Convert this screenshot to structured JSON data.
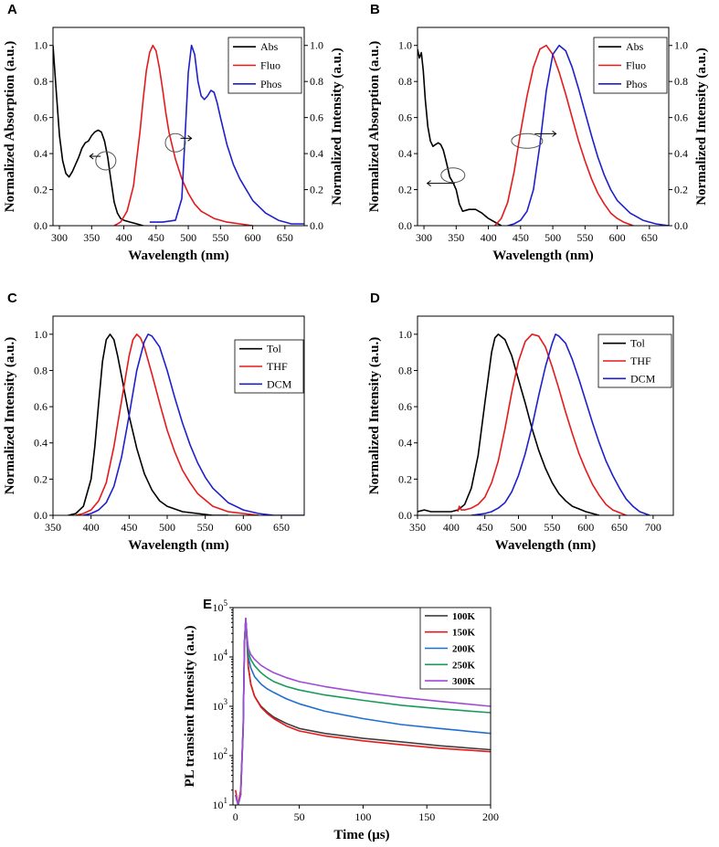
{
  "chart_data": [
    {
      "id": "A",
      "type": "line",
      "panel_label": "A",
      "xlabel": "Wavelength (nm)",
      "ylabel": "Normalized Absorption (a.u.)",
      "ylabel_right": "Normalized Intensity (a.u.)",
      "xlim": [
        290,
        680
      ],
      "ylim": [
        0,
        1.1
      ],
      "xticks": [
        300,
        350,
        400,
        450,
        500,
        550,
        600,
        650
      ],
      "yticks": [
        0.0,
        0.2,
        0.4,
        0.6,
        0.8,
        1.0
      ],
      "yticks_right": [
        0.0,
        0.2,
        0.4,
        0.6,
        0.8,
        1.0
      ],
      "tick_labels": [
        "0.0",
        "0.2",
        "0.4",
        "0.6",
        "0.8",
        "1.0"
      ],
      "legend": "top-right",
      "series": [
        {
          "name": "Abs",
          "color": "#000000",
          "x": [
            290,
            295,
            300,
            305,
            310,
            315,
            320,
            325,
            330,
            335,
            340,
            345,
            350,
            355,
            360,
            365,
            370,
            375,
            380,
            385,
            390,
            395,
            400,
            410,
            420,
            430
          ],
          "y": [
            1.0,
            0.75,
            0.5,
            0.36,
            0.29,
            0.27,
            0.3,
            0.34,
            0.38,
            0.43,
            0.46,
            0.47,
            0.5,
            0.52,
            0.53,
            0.52,
            0.47,
            0.38,
            0.25,
            0.13,
            0.07,
            0.04,
            0.03,
            0.02,
            0.01,
            0.0
          ]
        },
        {
          "name": "Fluo",
          "color": "#e41a1c",
          "x": [
            385,
            395,
            405,
            415,
            425,
            430,
            435,
            440,
            445,
            450,
            455,
            460,
            465,
            470,
            480,
            490,
            500,
            510,
            520,
            540,
            560,
            580,
            600
          ],
          "y": [
            0.0,
            0.02,
            0.08,
            0.22,
            0.52,
            0.7,
            0.86,
            0.96,
            1.0,
            0.97,
            0.88,
            0.76,
            0.63,
            0.52,
            0.37,
            0.26,
            0.18,
            0.12,
            0.08,
            0.04,
            0.02,
            0.01,
            0.0
          ]
        },
        {
          "name": "Phos",
          "color": "#1f1fcc",
          "x": [
            440,
            460,
            480,
            490,
            495,
            500,
            505,
            510,
            515,
            520,
            525,
            530,
            535,
            540,
            545,
            550,
            560,
            570,
            580,
            600,
            620,
            640,
            660,
            680
          ],
          "y": [
            0.02,
            0.02,
            0.03,
            0.15,
            0.5,
            0.85,
            1.0,
            0.95,
            0.8,
            0.72,
            0.7,
            0.72,
            0.75,
            0.74,
            0.68,
            0.6,
            0.45,
            0.34,
            0.26,
            0.14,
            0.07,
            0.03,
            0.01,
            0.01
          ]
        }
      ],
      "annotations": [
        "arrow-left",
        "arrow-right"
      ]
    },
    {
      "id": "B",
      "type": "line",
      "panel_label": "B",
      "xlabel": "Wavelength (nm)",
      "ylabel": "Normalized Absorption (a.u.)",
      "ylabel_right": "Normalized Intensity (a.u.)",
      "xlim": [
        290,
        680
      ],
      "ylim": [
        0,
        1.1
      ],
      "xticks": [
        300,
        350,
        400,
        450,
        500,
        550,
        600,
        650
      ],
      "yticks": [
        0.0,
        0.2,
        0.4,
        0.6,
        0.8,
        1.0
      ],
      "yticks_right": [
        0.0,
        0.2,
        0.4,
        0.6,
        0.8,
        1.0
      ],
      "tick_labels": [
        "0.0",
        "0.2",
        "0.4",
        "0.6",
        "0.8",
        "1.0"
      ],
      "legend": "top-right",
      "series": [
        {
          "name": "Abs",
          "color": "#000000",
          "x": [
            290,
            293,
            296,
            299,
            302,
            306,
            310,
            314,
            318,
            322,
            326,
            330,
            335,
            340,
            345,
            350,
            355,
            360,
            370,
            380,
            390,
            400,
            410,
            420
          ],
          "y": [
            0.98,
            0.93,
            0.96,
            0.86,
            0.7,
            0.55,
            0.47,
            0.44,
            0.45,
            0.46,
            0.45,
            0.42,
            0.35,
            0.27,
            0.24,
            0.2,
            0.12,
            0.08,
            0.09,
            0.09,
            0.07,
            0.04,
            0.02,
            0.0
          ]
        },
        {
          "name": "Fluo",
          "color": "#e41a1c",
          "x": [
            410,
            420,
            430,
            440,
            450,
            460,
            470,
            480,
            490,
            500,
            510,
            520,
            530,
            540,
            550,
            560,
            570,
            580,
            590,
            600,
            610,
            625
          ],
          "y": [
            0.0,
            0.04,
            0.13,
            0.3,
            0.52,
            0.72,
            0.88,
            0.98,
            1.0,
            0.95,
            0.85,
            0.73,
            0.6,
            0.47,
            0.36,
            0.26,
            0.18,
            0.12,
            0.07,
            0.04,
            0.02,
            0.0
          ]
        },
        {
          "name": "Phos",
          "color": "#1f1fcc",
          "x": [
            430,
            440,
            450,
            460,
            470,
            480,
            490,
            500,
            510,
            520,
            530,
            540,
            550,
            560,
            570,
            580,
            590,
            600,
            620,
            640,
            660,
            680
          ],
          "y": [
            0.0,
            0.01,
            0.03,
            0.08,
            0.2,
            0.45,
            0.75,
            0.95,
            1.0,
            0.97,
            0.88,
            0.76,
            0.63,
            0.5,
            0.38,
            0.28,
            0.2,
            0.14,
            0.07,
            0.03,
            0.01,
            0.0
          ]
        }
      ],
      "annotations": [
        "arrow-left",
        "arrow-right"
      ]
    },
    {
      "id": "C",
      "type": "line",
      "panel_label": "C",
      "xlabel": "Wavelength (nm)",
      "ylabel": "Normalized Intensity (a.u.)",
      "xlim": [
        350,
        680
      ],
      "ylim": [
        0,
        1.1
      ],
      "xticks": [
        350,
        400,
        450,
        500,
        550,
        600,
        650
      ],
      "yticks": [
        0.0,
        0.2,
        0.4,
        0.6,
        0.8,
        1.0
      ],
      "tick_labels": [
        "0.0",
        "0.2",
        "0.4",
        "0.6",
        "0.8",
        "1.0"
      ],
      "legend": "top-right",
      "series": [
        {
          "name": "Tol",
          "color": "#000000",
          "x": [
            370,
            380,
            390,
            400,
            405,
            410,
            415,
            420,
            425,
            430,
            435,
            440,
            450,
            460,
            470,
            480,
            490,
            500,
            520,
            540,
            560,
            580
          ],
          "y": [
            0.0,
            0.01,
            0.05,
            0.2,
            0.38,
            0.62,
            0.85,
            0.97,
            1.0,
            0.97,
            0.88,
            0.77,
            0.55,
            0.37,
            0.23,
            0.14,
            0.08,
            0.05,
            0.02,
            0.01,
            0.0,
            0.0
          ]
        },
        {
          "name": "THF",
          "color": "#e41a1c",
          "x": [
            380,
            390,
            400,
            410,
            420,
            430,
            440,
            450,
            455,
            460,
            465,
            470,
            480,
            490,
            500,
            510,
            520,
            530,
            540,
            560,
            580,
            600,
            620
          ],
          "y": [
            0.0,
            0.01,
            0.03,
            0.08,
            0.18,
            0.38,
            0.63,
            0.88,
            0.97,
            1.0,
            0.98,
            0.93,
            0.78,
            0.62,
            0.47,
            0.35,
            0.25,
            0.18,
            0.12,
            0.05,
            0.02,
            0.01,
            0.0
          ]
        },
        {
          "name": "DCM",
          "color": "#1f1fcc",
          "x": [
            390,
            400,
            410,
            420,
            430,
            440,
            450,
            460,
            470,
            475,
            480,
            490,
            500,
            510,
            520,
            530,
            540,
            550,
            560,
            580,
            600,
            620,
            640,
            680
          ],
          "y": [
            0.0,
            0.01,
            0.03,
            0.07,
            0.16,
            0.32,
            0.55,
            0.8,
            0.96,
            1.0,
            0.99,
            0.93,
            0.8,
            0.65,
            0.51,
            0.39,
            0.29,
            0.21,
            0.15,
            0.07,
            0.03,
            0.01,
            0.0,
            0.0
          ]
        }
      ]
    },
    {
      "id": "D",
      "type": "line",
      "panel_label": "D",
      "xlabel": "Wavelength (nm)",
      "ylabel": "Normalized Intensity (a.u.)",
      "xlim": [
        350,
        730
      ],
      "ylim": [
        0,
        1.1
      ],
      "xticks": [
        350,
        400,
        450,
        500,
        550,
        600,
        650,
        700
      ],
      "yticks": [
        0.0,
        0.2,
        0.4,
        0.6,
        0.8,
        1.0
      ],
      "tick_labels": [
        "0.0",
        "0.2",
        "0.4",
        "0.6",
        "0.8",
        "1.0"
      ],
      "legend": "top-right",
      "series": [
        {
          "name": "Tol",
          "color": "#000000",
          "x": [
            350,
            360,
            370,
            380,
            400,
            410,
            420,
            430,
            440,
            450,
            460,
            465,
            470,
            480,
            490,
            500,
            510,
            520,
            530,
            540,
            550,
            560,
            570,
            580,
            600,
            620
          ],
          "y": [
            0.02,
            0.03,
            0.02,
            0.02,
            0.02,
            0.03,
            0.06,
            0.15,
            0.33,
            0.62,
            0.9,
            0.98,
            1.0,
            0.97,
            0.88,
            0.75,
            0.62,
            0.48,
            0.36,
            0.26,
            0.18,
            0.12,
            0.08,
            0.05,
            0.02,
            0.0
          ]
        },
        {
          "name": "THF",
          "color": "#e41a1c",
          "x": [
            410,
            412,
            415,
            420,
            430,
            440,
            450,
            460,
            470,
            480,
            490,
            500,
            510,
            520,
            530,
            540,
            550,
            560,
            570,
            580,
            590,
            600,
            610,
            620,
            630,
            640,
            660
          ],
          "y": [
            0.02,
            0.05,
            0.03,
            0.03,
            0.04,
            0.06,
            0.1,
            0.18,
            0.3,
            0.48,
            0.68,
            0.85,
            0.96,
            1.0,
            0.99,
            0.93,
            0.82,
            0.7,
            0.57,
            0.45,
            0.34,
            0.25,
            0.17,
            0.11,
            0.06,
            0.03,
            0.0
          ]
        },
        {
          "name": "DCM",
          "color": "#1f1fcc",
          "x": [
            430,
            450,
            460,
            470,
            480,
            490,
            500,
            510,
            520,
            530,
            540,
            550,
            555,
            560,
            570,
            580,
            590,
            600,
            610,
            620,
            630,
            640,
            650,
            660,
            670,
            680,
            695
          ],
          "y": [
            0.0,
            0.01,
            0.02,
            0.04,
            0.07,
            0.13,
            0.22,
            0.34,
            0.49,
            0.66,
            0.82,
            0.95,
            1.0,
            0.99,
            0.95,
            0.86,
            0.75,
            0.63,
            0.51,
            0.4,
            0.3,
            0.22,
            0.15,
            0.09,
            0.05,
            0.02,
            0.0
          ]
        }
      ]
    },
    {
      "id": "E",
      "type": "line",
      "panel_label": "E",
      "yscale": "log",
      "xlabel": "Time (μs)",
      "ylabel": "PL transient Intensity (a.u.)",
      "xlim": [
        -2,
        200
      ],
      "ylim_exp": [
        1,
        5
      ],
      "xticks": [
        0,
        50,
        100,
        150,
        200
      ],
      "yticks_exp": [
        1,
        2,
        3,
        4,
        5
      ],
      "ytick_base": "10",
      "legend": "top-right",
      "series": [
        {
          "name": "100K",
          "color": "#404040",
          "x": [
            0,
            2,
            4,
            6,
            7,
            8,
            9,
            10,
            12,
            15,
            20,
            25,
            30,
            40,
            50,
            70,
            100,
            130,
            160,
            200
          ],
          "log10y": [
            1.2,
            1.0,
            1.2,
            2.5,
            4.3,
            4.78,
            4.3,
            3.8,
            3.45,
            3.2,
            3.0,
            2.88,
            2.78,
            2.65,
            2.55,
            2.45,
            2.35,
            2.28,
            2.2,
            2.12
          ]
        },
        {
          "name": "150K",
          "color": "#e41a1c",
          "x": [
            0,
            2,
            4,
            6,
            7,
            8,
            9,
            10,
            12,
            15,
            20,
            25,
            30,
            40,
            50,
            70,
            100,
            130,
            160,
            200
          ],
          "log10y": [
            1.3,
            1.0,
            1.3,
            2.6,
            4.3,
            4.78,
            4.3,
            3.8,
            3.45,
            3.2,
            2.98,
            2.85,
            2.75,
            2.6,
            2.5,
            2.4,
            2.3,
            2.22,
            2.15,
            2.08
          ]
        },
        {
          "name": "200K",
          "color": "#1f6fd1",
          "x": [
            0,
            2,
            4,
            6,
            7,
            8,
            9,
            10,
            12,
            15,
            20,
            25,
            30,
            40,
            50,
            70,
            100,
            130,
            160,
            200
          ],
          "log10y": [
            1.2,
            1.0,
            1.2,
            2.6,
            4.3,
            4.78,
            4.35,
            4.0,
            3.78,
            3.6,
            3.45,
            3.35,
            3.28,
            3.15,
            3.05,
            2.9,
            2.75,
            2.63,
            2.55,
            2.45
          ]
        },
        {
          "name": "250K",
          "color": "#1a9a5a",
          "x": [
            0,
            2,
            4,
            6,
            7,
            8,
            9,
            10,
            12,
            15,
            20,
            25,
            30,
            40,
            50,
            70,
            100,
            130,
            160,
            200
          ],
          "log10y": [
            1.2,
            1.0,
            1.2,
            2.6,
            4.3,
            4.78,
            4.4,
            4.1,
            3.95,
            3.82,
            3.68,
            3.58,
            3.5,
            3.4,
            3.33,
            3.23,
            3.12,
            3.02,
            2.95,
            2.87
          ]
        },
        {
          "name": "300K",
          "color": "#a04ad6",
          "x": [
            0,
            2,
            4,
            6,
            7,
            8,
            9,
            10,
            12,
            15,
            20,
            25,
            30,
            40,
            50,
            70,
            100,
            130,
            160,
            200
          ],
          "log10y": [
            1.2,
            1.0,
            1.2,
            2.6,
            4.3,
            4.78,
            4.42,
            4.18,
            4.05,
            3.95,
            3.83,
            3.75,
            3.68,
            3.58,
            3.5,
            3.4,
            3.28,
            3.18,
            3.1,
            3.0
          ]
        }
      ]
    }
  ]
}
